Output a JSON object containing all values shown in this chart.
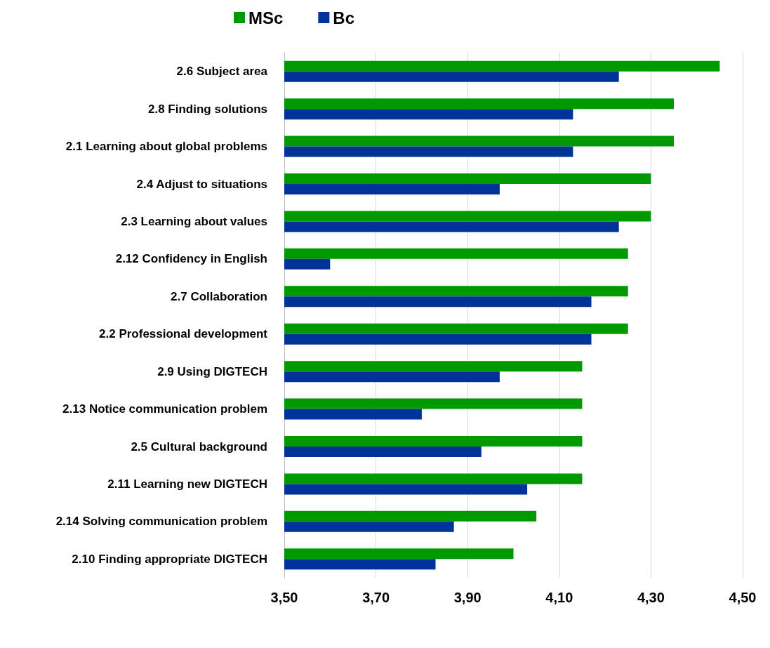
{
  "chart_data": {
    "type": "bar",
    "orientation": "horizontal",
    "categories": [
      "2.6 Subject area",
      "2.8 Finding solutions",
      "2.1 Learning about global problems",
      "2.4 Adjust to situations",
      "2.3 Learning about values",
      "2.12 Confidency in English",
      "2.7 Collaboration",
      "2.2 Professional development",
      "2.9 Using DIGTECH",
      "2.13 Notice communication problem",
      "2.5 Cultural background",
      "2.11 Learning new DIGTECH",
      "2.14 Solving communication problem",
      "2.10 Finding appropriate DIGTECH"
    ],
    "series": [
      {
        "name": "MSc",
        "color": "#009900",
        "values": [
          4.45,
          4.35,
          4.35,
          4.3,
          4.3,
          4.25,
          4.25,
          4.25,
          4.15,
          4.15,
          4.15,
          4.15,
          4.05,
          4.0
        ]
      },
      {
        "name": "Bc",
        "color": "#003399",
        "values": [
          4.23,
          4.13,
          4.13,
          3.97,
          4.23,
          3.6,
          4.17,
          4.17,
          3.97,
          3.8,
          3.93,
          4.03,
          3.87,
          3.83
        ]
      }
    ],
    "xlim": [
      3.5,
      4.5
    ],
    "xticks": [
      {
        "value": 3.5,
        "label": "3,50"
      },
      {
        "value": 3.7,
        "label": "3,70"
      },
      {
        "value": 3.9,
        "label": "3,90"
      },
      {
        "value": 4.1,
        "label": "4,10"
      },
      {
        "value": 4.3,
        "label": "4,30"
      },
      {
        "value": 4.5,
        "label": "4,50"
      }
    ],
    "grid": "x",
    "legend": "top left"
  }
}
